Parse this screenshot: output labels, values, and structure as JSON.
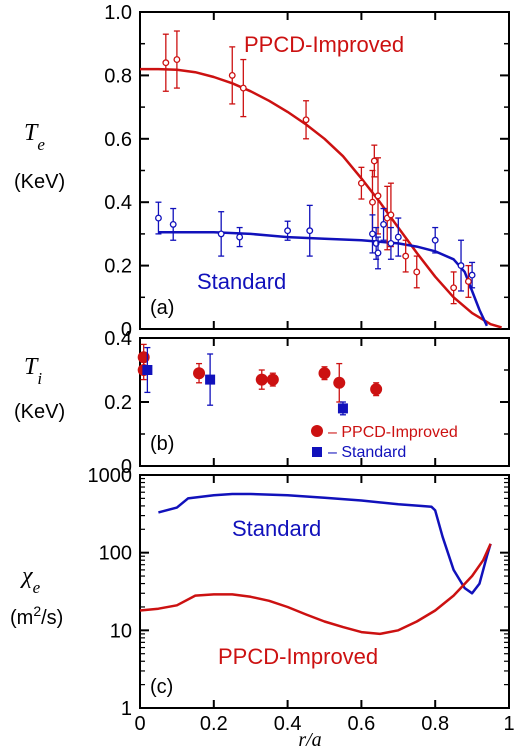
{
  "colors": {
    "ppcd": "#cc1111",
    "standard": "#1111bb",
    "axis": "#000000"
  },
  "chart_data": [
    {
      "type": "line",
      "panel": "(a)",
      "ylabel_symbol": "Te",
      "ylabel_unit": "(KeV)",
      "ylim": [
        0,
        1.0
      ],
      "xlim": [
        0,
        1
      ],
      "yticks": [
        "0",
        "0.2",
        "0.4",
        "0.6",
        "0.8",
        "1.0"
      ],
      "yscale": "linear",
      "series": [
        {
          "name": "PPCD-Improved",
          "color": "#cc1111",
          "line": [
            [
              0.0,
              0.82
            ],
            [
              0.05,
              0.82
            ],
            [
              0.1,
              0.818
            ],
            [
              0.15,
              0.81
            ],
            [
              0.2,
              0.795
            ],
            [
              0.25,
              0.775
            ],
            [
              0.3,
              0.75
            ],
            [
              0.35,
              0.72
            ],
            [
              0.4,
              0.685
            ],
            [
              0.45,
              0.645
            ],
            [
              0.5,
              0.6
            ],
            [
              0.55,
              0.545
            ],
            [
              0.6,
              0.475
            ],
            [
              0.65,
              0.4
            ],
            [
              0.7,
              0.32
            ],
            [
              0.75,
              0.24
            ],
            [
              0.8,
              0.165
            ],
            [
              0.85,
              0.1
            ],
            [
              0.9,
              0.05
            ],
            [
              0.95,
              0.015
            ],
            [
              0.98,
              0.005
            ]
          ],
          "points": [
            {
              "x": 0.07,
              "y": 0.84,
              "err": 0.09
            },
            {
              "x": 0.1,
              "y": 0.85,
              "err": 0.09
            },
            {
              "x": 0.25,
              "y": 0.8,
              "err": 0.09
            },
            {
              "x": 0.28,
              "y": 0.76,
              "err": 0.09
            },
            {
              "x": 0.45,
              "y": 0.66,
              "err": 0.06
            },
            {
              "x": 0.6,
              "y": 0.46,
              "err": 0.05
            },
            {
              "x": 0.63,
              "y": 0.4,
              "err": 0.1
            },
            {
              "x": 0.635,
              "y": 0.53,
              "err": 0.05
            },
            {
              "x": 0.645,
              "y": 0.42,
              "err": 0.12
            },
            {
              "x": 0.67,
              "y": 0.35,
              "err": 0.1
            },
            {
              "x": 0.68,
              "y": 0.36,
              "err": 0.1
            },
            {
              "x": 0.72,
              "y": 0.23,
              "err": 0.05
            },
            {
              "x": 0.75,
              "y": 0.18,
              "err": 0.05
            },
            {
              "x": 0.85,
              "y": 0.13,
              "err": 0.05
            },
            {
              "x": 0.89,
              "y": 0.15,
              "err": 0.05
            }
          ]
        },
        {
          "name": "Standard",
          "color": "#1111bb",
          "line": [
            [
              0.05,
              0.305
            ],
            [
              0.1,
              0.305
            ],
            [
              0.2,
              0.305
            ],
            [
              0.3,
              0.3
            ],
            [
              0.35,
              0.295
            ],
            [
              0.4,
              0.29
            ],
            [
              0.5,
              0.285
            ],
            [
              0.6,
              0.28
            ],
            [
              0.65,
              0.275
            ],
            [
              0.7,
              0.27
            ],
            [
              0.75,
              0.26
            ],
            [
              0.8,
              0.245
            ],
            [
              0.85,
              0.22
            ],
            [
              0.88,
              0.18
            ],
            [
              0.9,
              0.12
            ],
            [
              0.92,
              0.06
            ],
            [
              0.94,
              0.01
            ]
          ],
          "points": [
            {
              "x": 0.05,
              "y": 0.35,
              "err": 0.05
            },
            {
              "x": 0.09,
              "y": 0.33,
              "err": 0.05
            },
            {
              "x": 0.22,
              "y": 0.3,
              "err": 0.07
            },
            {
              "x": 0.27,
              "y": 0.29,
              "err": 0.03
            },
            {
              "x": 0.4,
              "y": 0.31,
              "err": 0.03
            },
            {
              "x": 0.46,
              "y": 0.31,
              "err": 0.08
            },
            {
              "x": 0.63,
              "y": 0.3,
              "err": 0.06
            },
            {
              "x": 0.64,
              "y": 0.27,
              "err": 0.05
            },
            {
              "x": 0.645,
              "y": 0.24,
              "err": 0.05
            },
            {
              "x": 0.66,
              "y": 0.33,
              "err": 0.05
            },
            {
              "x": 0.68,
              "y": 0.27,
              "err": 0.05
            },
            {
              "x": 0.7,
              "y": 0.29,
              "err": 0.06
            },
            {
              "x": 0.8,
              "y": 0.28,
              "err": 0.04
            },
            {
              "x": 0.87,
              "y": 0.2,
              "err": 0.08
            },
            {
              "x": 0.9,
              "y": 0.17,
              "err": 0.04
            }
          ]
        }
      ]
    },
    {
      "type": "scatter",
      "panel": "(b)",
      "ylabel_symbol": "Ti",
      "ylabel_unit": "(KeV)",
      "ylim": [
        0,
        0.4
      ],
      "xlim": [
        0,
        1
      ],
      "yticks": [
        "0",
        "0.2",
        "0.4"
      ],
      "yscale": "linear",
      "legend": {
        "placement": "bottom-right",
        "ppcd": "– PPCD-Improved",
        "standard": "– Standard"
      },
      "series": [
        {
          "name": "PPCD-Improved",
          "color": "#cc1111",
          "marker": "circle",
          "points": [
            {
              "x": 0.01,
              "y": 0.34,
              "err": 0.04
            },
            {
              "x": 0.01,
              "y": 0.3,
              "err": 0.03
            },
            {
              "x": 0.16,
              "y": 0.29,
              "err": 0.03
            },
            {
              "x": 0.33,
              "y": 0.27,
              "err": 0.03
            },
            {
              "x": 0.36,
              "y": 0.27,
              "err": 0.02
            },
            {
              "x": 0.5,
              "y": 0.29,
              "err": 0.02
            },
            {
              "x": 0.54,
              "y": 0.26,
              "err": 0.06
            },
            {
              "x": 0.64,
              "y": 0.24,
              "err": 0.02
            }
          ]
        },
        {
          "name": "Standard",
          "color": "#1111bb",
          "marker": "square",
          "points": [
            {
              "x": 0.02,
              "y": 0.3,
              "err": 0.07
            },
            {
              "x": 0.19,
              "y": 0.27,
              "err": 0.08
            },
            {
              "x": 0.55,
              "y": 0.18,
              "err": 0.02
            }
          ]
        }
      ]
    },
    {
      "type": "line",
      "panel": "(c)",
      "ylabel_symbol": "χe",
      "ylabel_unit": "(m2/s)",
      "ylim": [
        1,
        1000
      ],
      "xlim": [
        0,
        1
      ],
      "yscale": "log",
      "yticks": [
        "1",
        "10",
        "100",
        "1000"
      ],
      "xticks": [
        "0",
        "0.2",
        "0.4",
        "0.6",
        "0.8",
        "1"
      ],
      "xlabel": "r/a",
      "series": [
        {
          "name": "Standard",
          "color": "#1111bb",
          "line": [
            [
              0.05,
              330
            ],
            [
              0.1,
              380
            ],
            [
              0.13,
              500
            ],
            [
              0.2,
              550
            ],
            [
              0.25,
              570
            ],
            [
              0.3,
              570
            ],
            [
              0.4,
              550
            ],
            [
              0.5,
              510
            ],
            [
              0.6,
              470
            ],
            [
              0.7,
              420
            ],
            [
              0.76,
              400
            ],
            [
              0.79,
              390
            ],
            [
              0.8,
              350
            ],
            [
              0.82,
              160
            ],
            [
              0.85,
              60
            ],
            [
              0.88,
              35
            ],
            [
              0.9,
              30
            ],
            [
              0.92,
              40
            ],
            [
              0.94,
              90
            ],
            [
              0.95,
              130
            ]
          ]
        },
        {
          "name": "PPCD-Improved",
          "color": "#cc1111",
          "line": [
            [
              0.0,
              18
            ],
            [
              0.05,
              19
            ],
            [
              0.1,
              21
            ],
            [
              0.15,
              28
            ],
            [
              0.2,
              29
            ],
            [
              0.25,
              29
            ],
            [
              0.3,
              27
            ],
            [
              0.35,
              24
            ],
            [
              0.4,
              20
            ],
            [
              0.45,
              16
            ],
            [
              0.5,
              13
            ],
            [
              0.55,
              11
            ],
            [
              0.6,
              9.5
            ],
            [
              0.65,
              9
            ],
            [
              0.7,
              10
            ],
            [
              0.75,
              13
            ],
            [
              0.8,
              18
            ],
            [
              0.85,
              28
            ],
            [
              0.9,
              50
            ],
            [
              0.93,
              80
            ],
            [
              0.95,
              130
            ]
          ]
        }
      ]
    }
  ],
  "labels": {
    "a_ppcd": "PPCD-Improved",
    "a_standard": "Standard",
    "c_standard": "Standard",
    "c_ppcd": "PPCD-Improved"
  }
}
